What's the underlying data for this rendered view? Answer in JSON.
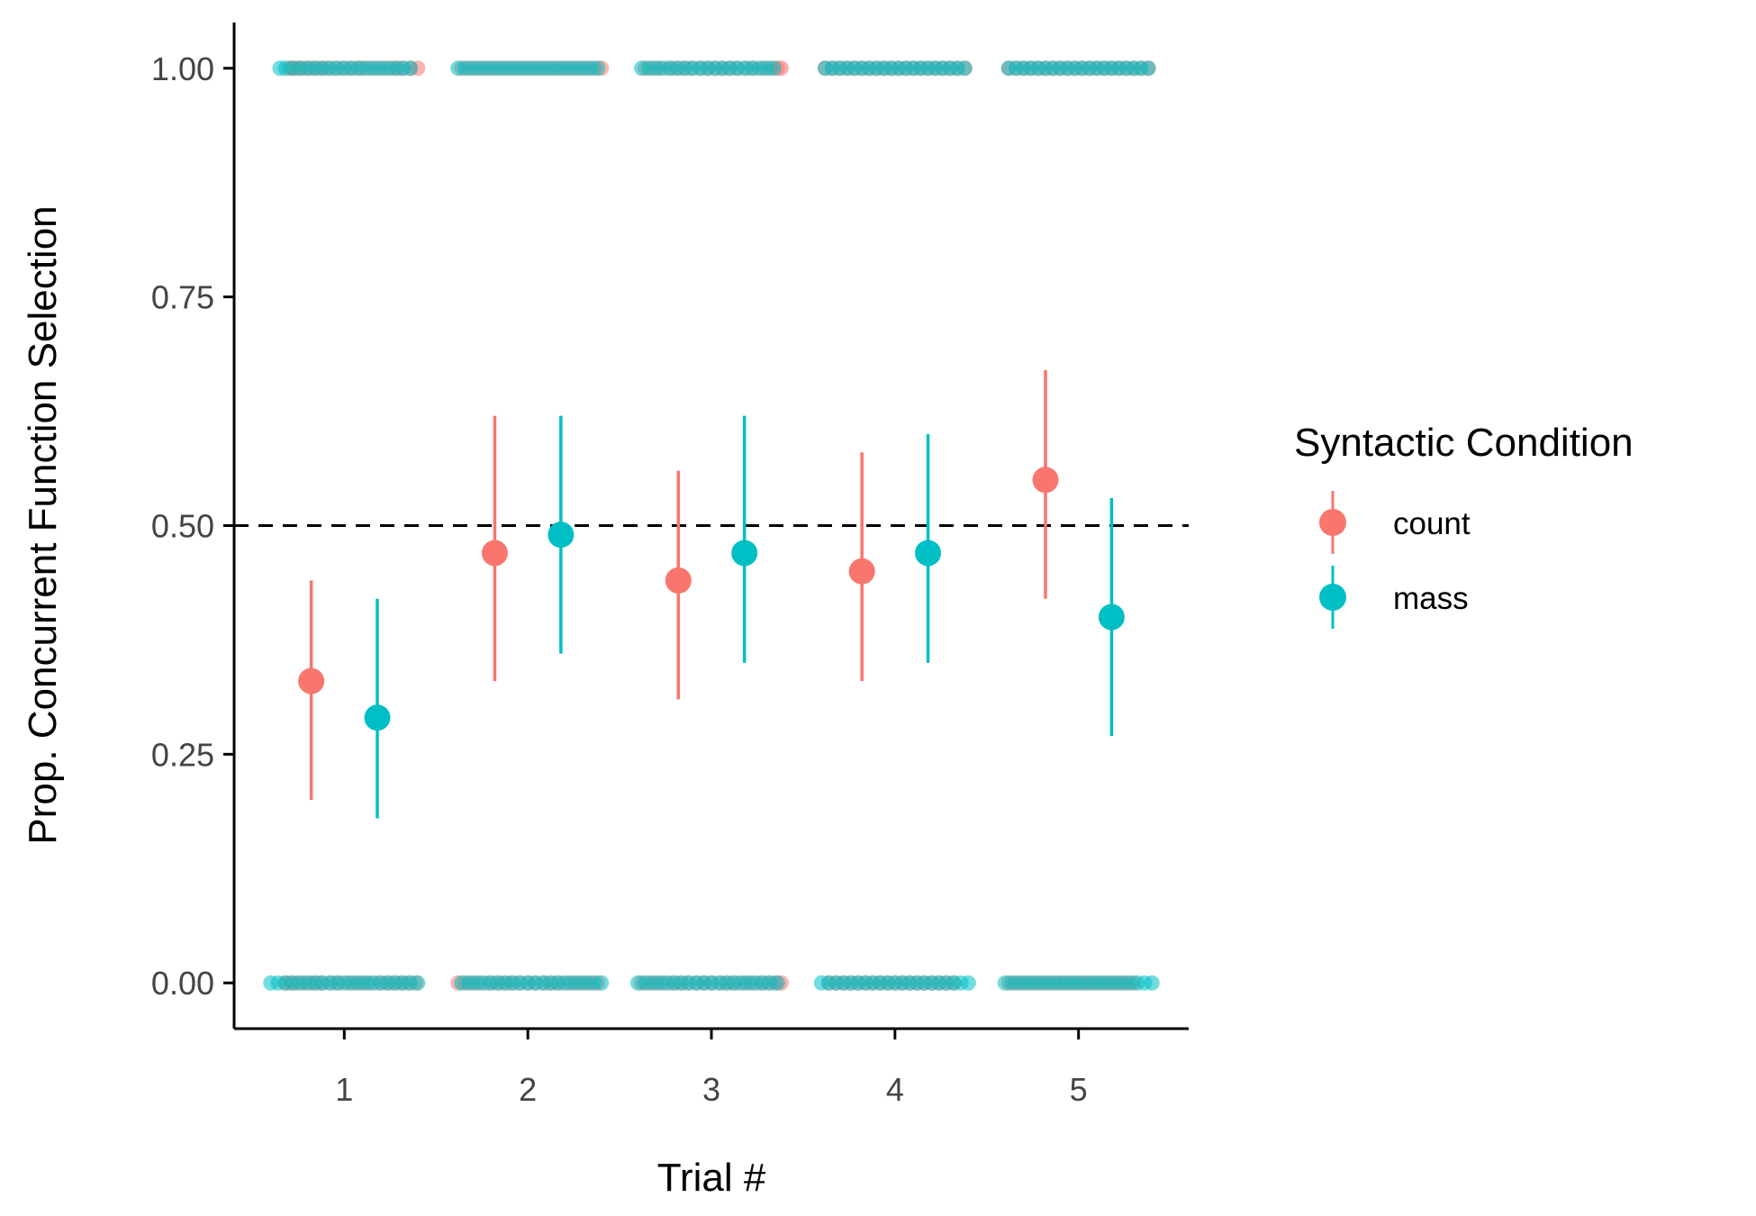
{
  "chart_data": {
    "type": "scatter",
    "title": "",
    "xlabel": "Trial #",
    "ylabel": "Prop. Concurrent Function Selection",
    "categories": [
      "1",
      "2",
      "3",
      "4",
      "5"
    ],
    "xlim": [
      0.4,
      5.6
    ],
    "ylim": [
      -0.05,
      1.05
    ],
    "yticks": [
      0.0,
      0.25,
      0.5,
      0.75,
      1.0
    ],
    "ytick_labels": [
      "0.00",
      "0.25",
      "0.50",
      "0.75",
      "1.00"
    ],
    "reference_line": {
      "y": 0.5,
      "style": "dashed",
      "color": "#000000"
    },
    "grid": false,
    "legend": {
      "title": "Syntactic Condition",
      "position": "right"
    },
    "series": [
      {
        "name": "count",
        "color": "#F8766D",
        "x": [
          1,
          2,
          3,
          4,
          5
        ],
        "mean": [
          0.33,
          0.47,
          0.44,
          0.45,
          0.55
        ],
        "lower": [
          0.2,
          0.33,
          0.31,
          0.33,
          0.42
        ],
        "upper": [
          0.44,
          0.62,
          0.56,
          0.58,
          0.67
        ],
        "raw_points": {
          "1": {
            "y1": [
              0.7,
              0.72,
              0.74,
              0.76,
              0.79,
              0.82,
              0.85,
              0.88,
              0.91,
              0.95,
              0.99,
              1.03,
              1.07,
              1.1,
              1.14,
              1.18,
              1.22,
              1.26,
              1.29,
              1.32,
              1.36,
              1.4
            ],
            "y0": [
              0.68,
              0.71,
              0.74,
              0.78,
              0.82,
              0.85,
              0.88,
              0.93,
              0.97,
              1.02,
              1.06,
              1.1,
              1.14,
              1.19,
              1.23,
              1.27,
              1.31,
              1.35,
              1.39
            ]
          },
          "2": {
            "y1": [
              1.64,
              1.68,
              1.72,
              1.76,
              1.8,
              1.84,
              1.88,
              1.92,
              1.96,
              2.0,
              2.04,
              2.08,
              2.12,
              2.16,
              2.2,
              2.24,
              2.28,
              2.32,
              2.36,
              2.4
            ],
            "y0": [
              1.62,
              1.66,
              1.7,
              1.74,
              1.79,
              1.83,
              1.87,
              1.91,
              1.95,
              2.0,
              2.04,
              2.09,
              2.13,
              2.17,
              2.22,
              2.26,
              2.3,
              2.34,
              2.38
            ]
          },
          "3": {
            "y1": [
              2.64,
              2.68,
              2.72,
              2.77,
              2.81,
              2.85,
              2.89,
              2.94,
              2.98,
              3.02,
              3.06,
              3.1,
              3.14,
              3.19,
              3.23,
              3.28,
              3.32,
              3.36,
              3.38
            ],
            "y0": [
              2.62,
              2.66,
              2.7,
              2.74,
              2.79,
              2.83,
              2.87,
              2.92,
              2.96,
              3.0,
              3.05,
              3.09,
              3.13,
              3.18,
              3.22,
              3.27,
              3.31,
              3.35,
              3.38
            ]
          },
          "4": {
            "y1": [
              3.62,
              3.66,
              3.7,
              3.74,
              3.78,
              3.82,
              3.86,
              3.9,
              3.94,
              3.98,
              4.02,
              4.06,
              4.1,
              4.14,
              4.18,
              4.22,
              4.26,
              4.3,
              4.34,
              4.38
            ],
            "y0": [
              3.64,
              3.68,
              3.72,
              3.76,
              3.8,
              3.84,
              3.88,
              3.92,
              3.96,
              4.0,
              4.04,
              4.08,
              4.12,
              4.16,
              4.2,
              4.24,
              4.28,
              4.32
            ]
          },
          "5": {
            "y1": [
              4.62,
              4.66,
              4.7,
              4.74,
              4.78,
              4.82,
              4.86,
              4.9,
              4.94,
              4.98,
              5.02,
              5.06,
              5.1,
              5.14,
              5.18,
              5.22,
              5.26,
              5.3,
              5.34,
              5.38
            ],
            "y0": [
              4.62,
              4.66,
              4.7,
              4.74,
              4.78,
              4.82,
              4.86,
              4.9,
              4.94,
              4.98,
              5.02,
              5.06,
              5.1,
              5.14,
              5.18,
              5.22,
              5.26,
              5.3
            ]
          }
        }
      },
      {
        "name": "mass",
        "color": "#00BFC4",
        "x": [
          1,
          2,
          3,
          4,
          5
        ],
        "mean": [
          0.29,
          0.49,
          0.47,
          0.47,
          0.4
        ],
        "lower": [
          0.18,
          0.36,
          0.35,
          0.35,
          0.27
        ],
        "upper": [
          0.42,
          0.62,
          0.62,
          0.6,
          0.53
        ],
        "raw_points": {
          "1": {
            "y1": [
              0.65,
              0.68,
              0.72,
              0.76,
              0.8,
              0.84,
              0.88,
              0.92,
              0.96,
              1.0,
              1.04,
              1.08,
              1.12,
              1.16,
              1.2,
              1.24,
              1.28,
              1.32,
              1.36
            ],
            "y0": [
              0.6,
              0.64,
              0.68,
              0.72,
              0.76,
              0.8,
              0.84,
              0.88,
              0.92,
              0.96,
              1.0,
              1.04,
              1.08,
              1.12,
              1.16,
              1.2,
              1.24,
              1.28,
              1.32,
              1.36,
              1.4
            ]
          },
          "2": {
            "y1": [
              1.62,
              1.66,
              1.7,
              1.74,
              1.78,
              1.82,
              1.86,
              1.9,
              1.94,
              1.98,
              2.02,
              2.06,
              2.1,
              2.14,
              2.18,
              2.22,
              2.26,
              2.3,
              2.34,
              2.38
            ],
            "y0": [
              1.64,
              1.68,
              1.72,
              1.76,
              1.8,
              1.84,
              1.88,
              1.92,
              1.96,
              2.0,
              2.04,
              2.08,
              2.12,
              2.16,
              2.2,
              2.24,
              2.28,
              2.32,
              2.36,
              2.4
            ]
          },
          "3": {
            "y1": [
              2.62,
              2.66,
              2.7,
              2.74,
              2.78,
              2.82,
              2.86,
              2.9,
              2.94,
              2.98,
              3.02,
              3.06,
              3.1,
              3.14,
              3.18,
              3.22,
              3.26,
              3.3,
              3.34
            ],
            "y0": [
              2.6,
              2.64,
              2.68,
              2.72,
              2.76,
              2.8,
              2.84,
              2.88,
              2.92,
              2.96,
              3.0,
              3.04,
              3.08,
              3.12,
              3.16,
              3.2,
              3.24,
              3.28,
              3.32,
              3.36
            ]
          },
          "4": {
            "y1": [
              3.62,
              3.66,
              3.7,
              3.74,
              3.78,
              3.82,
              3.86,
              3.9,
              3.94,
              3.98,
              4.02,
              4.06,
              4.1,
              4.14,
              4.18,
              4.22,
              4.26,
              4.3,
              4.34,
              4.38
            ],
            "y0": [
              3.6,
              3.64,
              3.68,
              3.72,
              3.76,
              3.8,
              3.84,
              3.88,
              3.92,
              3.96,
              4.0,
              4.04,
              4.08,
              4.12,
              4.16,
              4.2,
              4.24,
              4.28,
              4.32,
              4.36,
              4.4
            ]
          },
          "5": {
            "y1": [
              4.62,
              4.66,
              4.7,
              4.74,
              4.78,
              4.82,
              4.86,
              4.9,
              4.94,
              4.98,
              5.02,
              5.06,
              5.1,
              5.14,
              5.18,
              5.22,
              5.26,
              5.3,
              5.34,
              5.38
            ],
            "y0": [
              4.6,
              4.64,
              4.68,
              4.72,
              4.76,
              4.8,
              4.84,
              4.88,
              4.92,
              4.96,
              5.0,
              5.04,
              5.08,
              5.12,
              5.16,
              5.2,
              5.24,
              5.28,
              5.32,
              5.36,
              5.4
            ]
          }
        }
      }
    ]
  }
}
